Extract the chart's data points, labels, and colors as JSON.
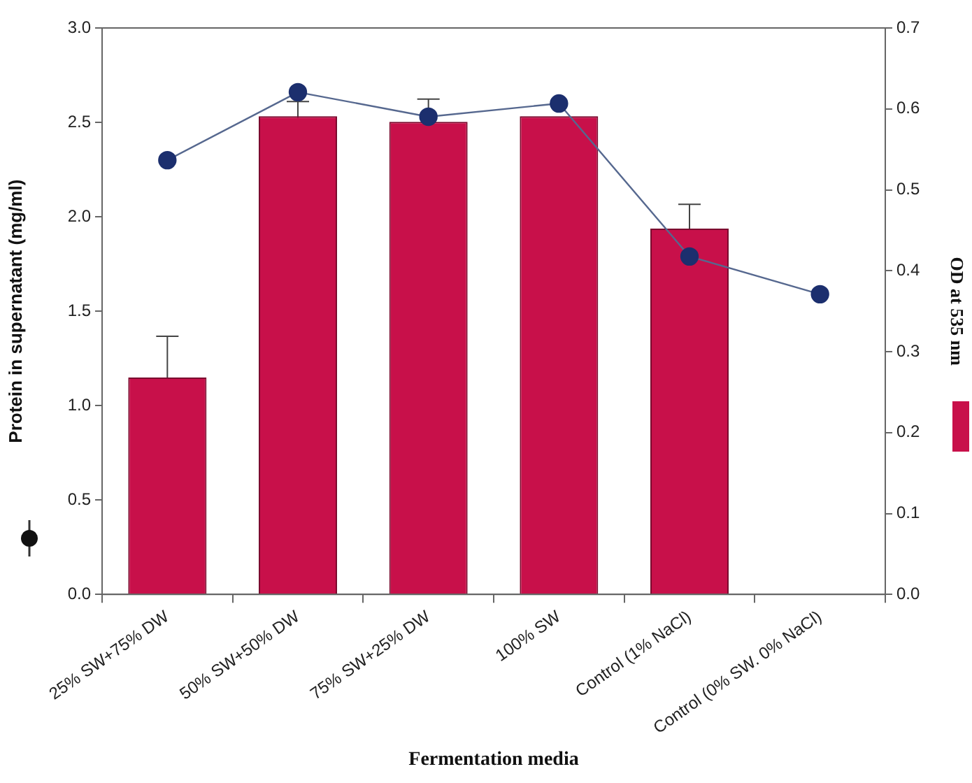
{
  "chart_data": {
    "type": "bar",
    "xlabel": "Fermentation media",
    "ylabel": "Protein in supernatant (mg/ml)",
    "y2label": "OD at 535 nm",
    "categories": [
      "25% SW+75% DW",
      "50% SW+50% DW",
      "75% SW+25% DW",
      "100% SW",
      "Control (1% NaCl)",
      "Control (0% SW. 0% NaCl)"
    ],
    "series": [
      {
        "axis": "y2",
        "color": "#c8104a",
        "values": [
          0.268,
          0.591,
          0.584,
          0.591,
          0.452,
          null
        ],
        "errors": [
          0.051,
          0.018,
          0.028,
          null,
          0.03,
          null
        ]
      },
      {
        "type": "line",
        "color": "#1c2f6e",
        "marker": "circle",
        "values": [
          2.3,
          2.66,
          2.53,
          2.6,
          1.79,
          1.59
        ]
      }
    ],
    "ylim": [
      0,
      3
    ],
    "yticks": [
      {
        "value": 0,
        "label": "0.0"
      },
      {
        "value": 0.5,
        "label": "0.5"
      },
      {
        "value": 1,
        "label": "1.0"
      },
      {
        "value": 1.5,
        "label": "1.5"
      },
      {
        "value": 2,
        "label": "2.0"
      },
      {
        "value": 2.5,
        "label": "2.5"
      },
      {
        "value": 3,
        "label": "3.0"
      }
    ],
    "y2lim": [
      0,
      0.7
    ],
    "y2ticks": [
      {
        "value": 0,
        "label": "0.0"
      },
      0.1,
      0.2,
      0.3,
      0.4,
      0.5,
      0.6,
      0.7
    ],
    "grid": false,
    "legend": false
  }
}
